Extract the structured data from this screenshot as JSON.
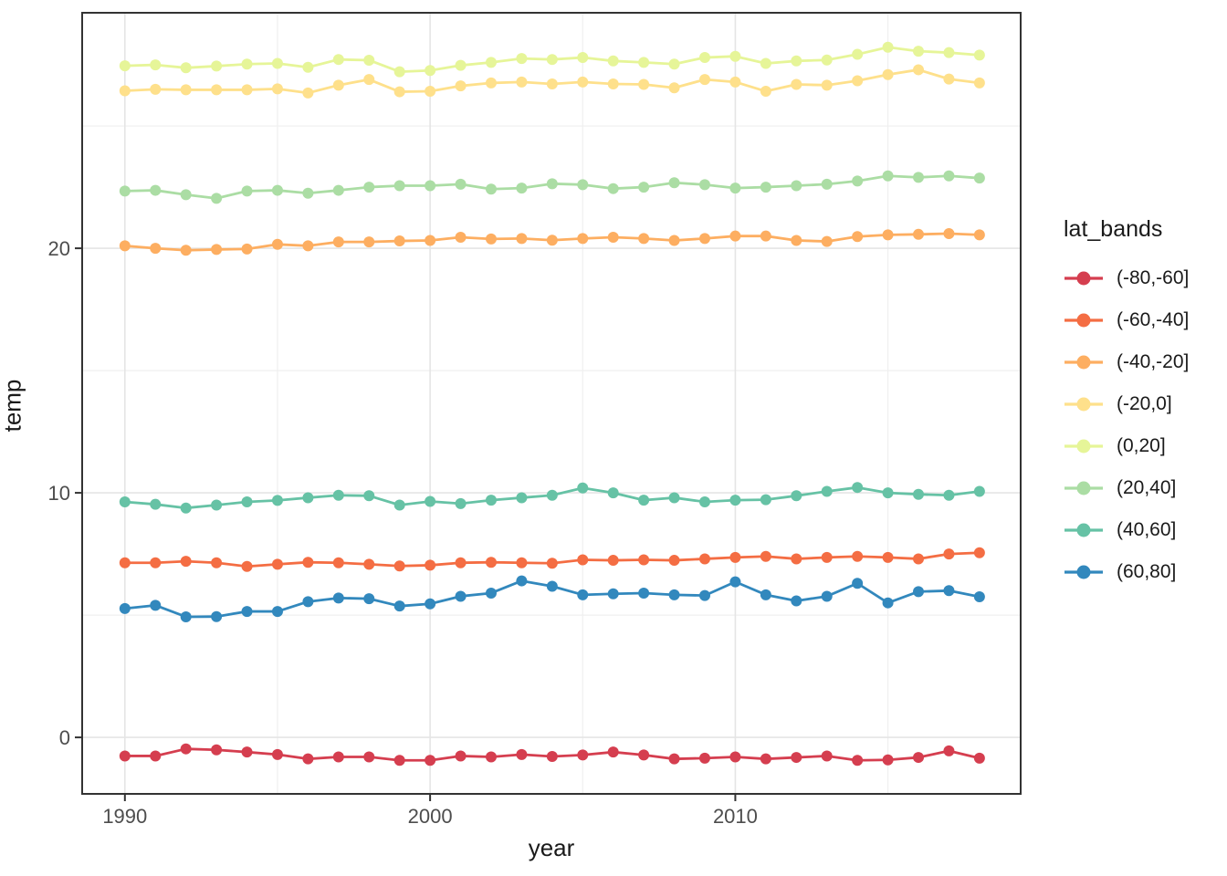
{
  "chart_data": {
    "type": "line",
    "title": "",
    "xlabel": "year",
    "ylabel": "temp",
    "legend_title": "lat_bands",
    "legend_position": "right",
    "grid": true,
    "xlim": [
      1988.6,
      2019.35
    ],
    "ylim": [
      -2.31,
      29.63
    ],
    "x_ticks": [
      1990,
      2000,
      2010
    ],
    "x_minor_ticks": [
      1995,
      2005,
      2015
    ],
    "y_ticks": [
      0,
      10,
      20
    ],
    "y_minor_ticks": [
      5,
      15,
      25
    ],
    "x": [
      1990,
      1991,
      1992,
      1993,
      1994,
      1995,
      1996,
      1997,
      1998,
      1999,
      2000,
      2001,
      2002,
      2003,
      2004,
      2005,
      2006,
      2007,
      2008,
      2009,
      2010,
      2011,
      2012,
      2013,
      2014,
      2015,
      2016,
      2017,
      2018
    ],
    "series": [
      {
        "name": "(-80,-60]",
        "color": "#D53E4F",
        "values": [
          -0.76,
          -0.76,
          -0.47,
          -0.51,
          -0.6,
          -0.7,
          -0.88,
          -0.8,
          -0.8,
          -0.94,
          -0.94,
          -0.76,
          -0.8,
          -0.7,
          -0.78,
          -0.72,
          -0.6,
          -0.72,
          -0.88,
          -0.85,
          -0.8,
          -0.88,
          -0.82,
          -0.76,
          -0.94,
          -0.92,
          -0.82,
          -0.55,
          -0.85
        ]
      },
      {
        "name": "(-60,-40]",
        "color": "#F46D43",
        "values": [
          7.14,
          7.14,
          7.2,
          7.14,
          6.99,
          7.08,
          7.16,
          7.14,
          7.08,
          7.01,
          7.04,
          7.14,
          7.16,
          7.14,
          7.12,
          7.26,
          7.24,
          7.26,
          7.24,
          7.3,
          7.36,
          7.4,
          7.3,
          7.36,
          7.4,
          7.36,
          7.3,
          7.5,
          7.55
        ]
      },
      {
        "name": "(-40,-20]",
        "color": "#FDAE61",
        "values": [
          20.1,
          20.0,
          19.92,
          19.95,
          19.97,
          20.16,
          20.1,
          20.26,
          20.26,
          20.3,
          20.32,
          20.45,
          20.38,
          20.4,
          20.33,
          20.4,
          20.45,
          20.4,
          20.32,
          20.4,
          20.5,
          20.5,
          20.32,
          20.28,
          20.48,
          20.55,
          20.57,
          20.6,
          20.55
        ]
      },
      {
        "name": "(-20,0]",
        "color": "#FEE08B",
        "values": [
          26.44,
          26.5,
          26.48,
          26.48,
          26.48,
          26.52,
          26.35,
          26.67,
          26.9,
          26.4,
          26.42,
          26.64,
          26.76,
          26.8,
          26.72,
          26.8,
          26.72,
          26.7,
          26.56,
          26.9,
          26.8,
          26.42,
          26.7,
          26.67,
          26.85,
          27.1,
          27.3,
          26.92,
          26.76
        ]
      },
      {
        "name": "(0,20]",
        "color": "#E6F598",
        "values": [
          27.46,
          27.5,
          27.38,
          27.45,
          27.53,
          27.56,
          27.4,
          27.72,
          27.69,
          27.22,
          27.27,
          27.48,
          27.6,
          27.76,
          27.72,
          27.8,
          27.66,
          27.6,
          27.53,
          27.8,
          27.85,
          27.56,
          27.66,
          27.7,
          27.93,
          28.22,
          28.06,
          28.0,
          27.9
        ]
      },
      {
        "name": "(20,40]",
        "color": "#ABDDA4",
        "values": [
          22.34,
          22.37,
          22.19,
          22.04,
          22.34,
          22.37,
          22.25,
          22.37,
          22.5,
          22.56,
          22.56,
          22.62,
          22.42,
          22.46,
          22.64,
          22.6,
          22.44,
          22.5,
          22.68,
          22.6,
          22.46,
          22.5,
          22.56,
          22.62,
          22.75,
          22.96,
          22.9,
          22.96,
          22.87
        ]
      },
      {
        "name": "(40,60]",
        "color": "#66C2A5",
        "values": [
          9.63,
          9.53,
          9.38,
          9.5,
          9.63,
          9.69,
          9.8,
          9.9,
          9.88,
          9.5,
          9.65,
          9.56,
          9.7,
          9.8,
          9.9,
          10.2,
          10.0,
          9.7,
          9.8,
          9.63,
          9.7,
          9.72,
          9.88,
          10.06,
          10.22,
          10.0,
          9.94,
          9.9,
          10.06
        ]
      },
      {
        "name": "(60,80]",
        "color": "#3288BD",
        "values": [
          5.27,
          5.4,
          4.93,
          4.94,
          5.15,
          5.15,
          5.55,
          5.7,
          5.67,
          5.37,
          5.46,
          5.77,
          5.9,
          6.4,
          6.18,
          5.83,
          5.87,
          5.9,
          5.83,
          5.8,
          6.36,
          5.83,
          5.58,
          5.77,
          6.3,
          5.5,
          5.96,
          6.0,
          5.75
        ]
      }
    ],
    "style": {
      "panel_border_color": "#333333",
      "major_grid_color": "#e5e5e5",
      "minor_grid_color": "#efefef",
      "tick_label_color": "#4d4d4d",
      "tick_mark_color": "#333333"
    }
  }
}
